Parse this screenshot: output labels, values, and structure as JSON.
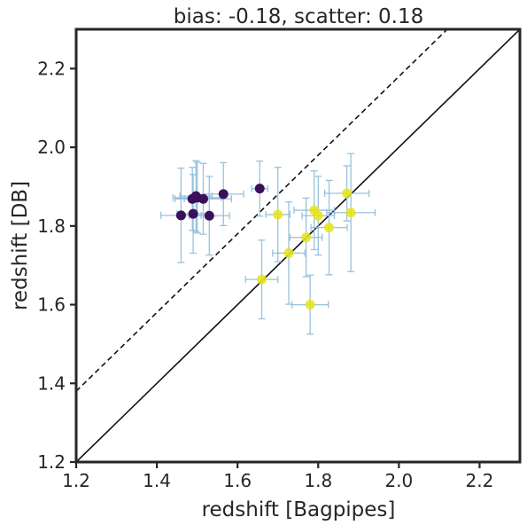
{
  "chart_data": {
    "type": "scatter",
    "title": "bias: -0.18, scatter: 0.18",
    "xlabel": "redshift [Bagpipes]",
    "ylabel": "redshift [DB]",
    "xlim": [
      1.2,
      2.3
    ],
    "ylim": [
      1.2,
      2.3
    ],
    "xticks": [
      "1.2",
      "1.4",
      "1.6",
      "1.8",
      "2.0",
      "2.2"
    ],
    "yticks": [
      "1.2",
      "1.4",
      "1.6",
      "1.8",
      "2.0",
      "2.2"
    ],
    "grid": false,
    "errorbar_color": "#8fbcd9",
    "reference_lines": [
      {
        "style": "solid",
        "slope": 1,
        "intercept": 0
      },
      {
        "style": "dashed",
        "slope": 1,
        "intercept": 0.18
      }
    ],
    "series": [
      {
        "color": "#3a0f5c",
        "points": [
          {
            "x": 1.46,
            "y": 1.827,
            "xerr": 0.05,
            "yerr": 0.12
          },
          {
            "x": 1.488,
            "y": 1.869,
            "xerr": 0.02,
            "yerr": 0.08
          },
          {
            "x": 1.49,
            "y": 1.831,
            "xerr": 0.04,
            "yerr": 0.1
          },
          {
            "x": 1.497,
            "y": 1.876,
            "xerr": 0.04,
            "yerr": 0.09
          },
          {
            "x": 1.5,
            "y": 1.872,
            "xerr": 0.06,
            "yerr": 0.09
          },
          {
            "x": 1.515,
            "y": 1.869,
            "xerr": 0.07,
            "yerr": 0.09
          },
          {
            "x": 1.53,
            "y": 1.826,
            "xerr": 0.05,
            "yerr": 0.1
          },
          {
            "x": 1.565,
            "y": 1.881,
            "xerr": 0.05,
            "yerr": 0.08
          },
          {
            "x": 1.655,
            "y": 1.895,
            "xerr": 0.02,
            "yerr": 0.07
          }
        ]
      },
      {
        "color": "#e8e416",
        "points": [
          {
            "x": 1.66,
            "y": 1.664,
            "xerr": 0.04,
            "yerr": 0.1
          },
          {
            "x": 1.7,
            "y": 1.829,
            "xerr": 0.03,
            "yerr": 0.12
          },
          {
            "x": 1.727,
            "y": 1.731,
            "xerr": 0.04,
            "yerr": 0.13
          },
          {
            "x": 1.77,
            "y": 1.771,
            "xerr": 0.04,
            "yerr": 0.1
          },
          {
            "x": 1.78,
            "y": 1.6,
            "xerr": 0.045,
            "yerr": 0.075
          },
          {
            "x": 1.79,
            "y": 1.84,
            "xerr": 0.05,
            "yerr": 0.1
          },
          {
            "x": 1.8,
            "y": 1.826,
            "xerr": 0.04,
            "yerr": 0.1
          },
          {
            "x": 1.827,
            "y": 1.796,
            "xerr": 0.045,
            "yerr": 0.12
          },
          {
            "x": 1.871,
            "y": 1.883,
            "xerr": 0.055,
            "yerr": 0.07
          },
          {
            "x": 1.881,
            "y": 1.834,
            "xerr": 0.06,
            "yerr": 0.15
          }
        ]
      }
    ]
  }
}
